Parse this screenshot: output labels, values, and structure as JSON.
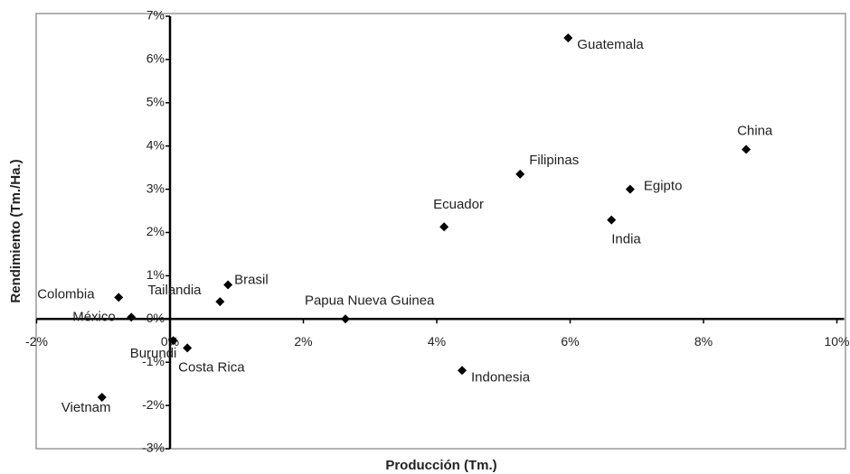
{
  "chart_data": {
    "type": "scatter",
    "x_label": "Producción (Tm.)",
    "y_label": "Rendimiento (Tm./Ha.)",
    "labels": [
      "Guatemala",
      "China",
      "Filipinas",
      "Egipto",
      "India",
      "Ecuador",
      "Brasil",
      "Tailandia",
      "Colombia",
      "México",
      "Papua Nueva Guinea",
      "Burundi",
      "Costa Rica",
      "Indonesia",
      "Vietnam"
    ],
    "x": [
      5.97,
      8.64,
      5.25,
      6.9,
      6.62,
      4.11,
      0.87,
      0.75,
      -0.77,
      -0.58,
      2.63,
      0.05,
      0.26,
      4.38,
      -1.02
    ],
    "values": [
      6.5,
      3.92,
      3.35,
      3.0,
      2.29,
      2.13,
      0.79,
      0.4,
      0.5,
      0.04,
      0.0,
      -0.5,
      -0.67,
      -1.19,
      -1.81
    ],
    "color": "#000000",
    "xlim": [
      -2,
      10
    ],
    "ylim": [
      -3,
      7
    ],
    "xticks": [
      {
        "value": -2,
        "label": "-2%"
      },
      {
        "value": 0,
        "label": "0%"
      },
      {
        "value": 2,
        "label": "2%"
      },
      {
        "value": 4,
        "label": "4%"
      },
      {
        "value": 6,
        "label": "6%"
      },
      {
        "value": 8,
        "label": "8%"
      },
      {
        "value": 10,
        "label": "10%"
      }
    ],
    "yticks": [
      {
        "value": -3,
        "label": "-3%"
      },
      {
        "value": -2,
        "label": "-2%"
      },
      {
        "value": -1,
        "label": "-1%"
      },
      {
        "value": 0,
        "label": "0%"
      },
      {
        "value": 1,
        "label": "1%"
      },
      {
        "value": 2,
        "label": "2%"
      },
      {
        "value": 3,
        "label": "3%"
      },
      {
        "value": 4,
        "label": "4%"
      },
      {
        "value": 5,
        "label": "5%"
      },
      {
        "value": 6,
        "label": "6%"
      },
      {
        "value": 7,
        "label": "7%"
      }
    ]
  }
}
